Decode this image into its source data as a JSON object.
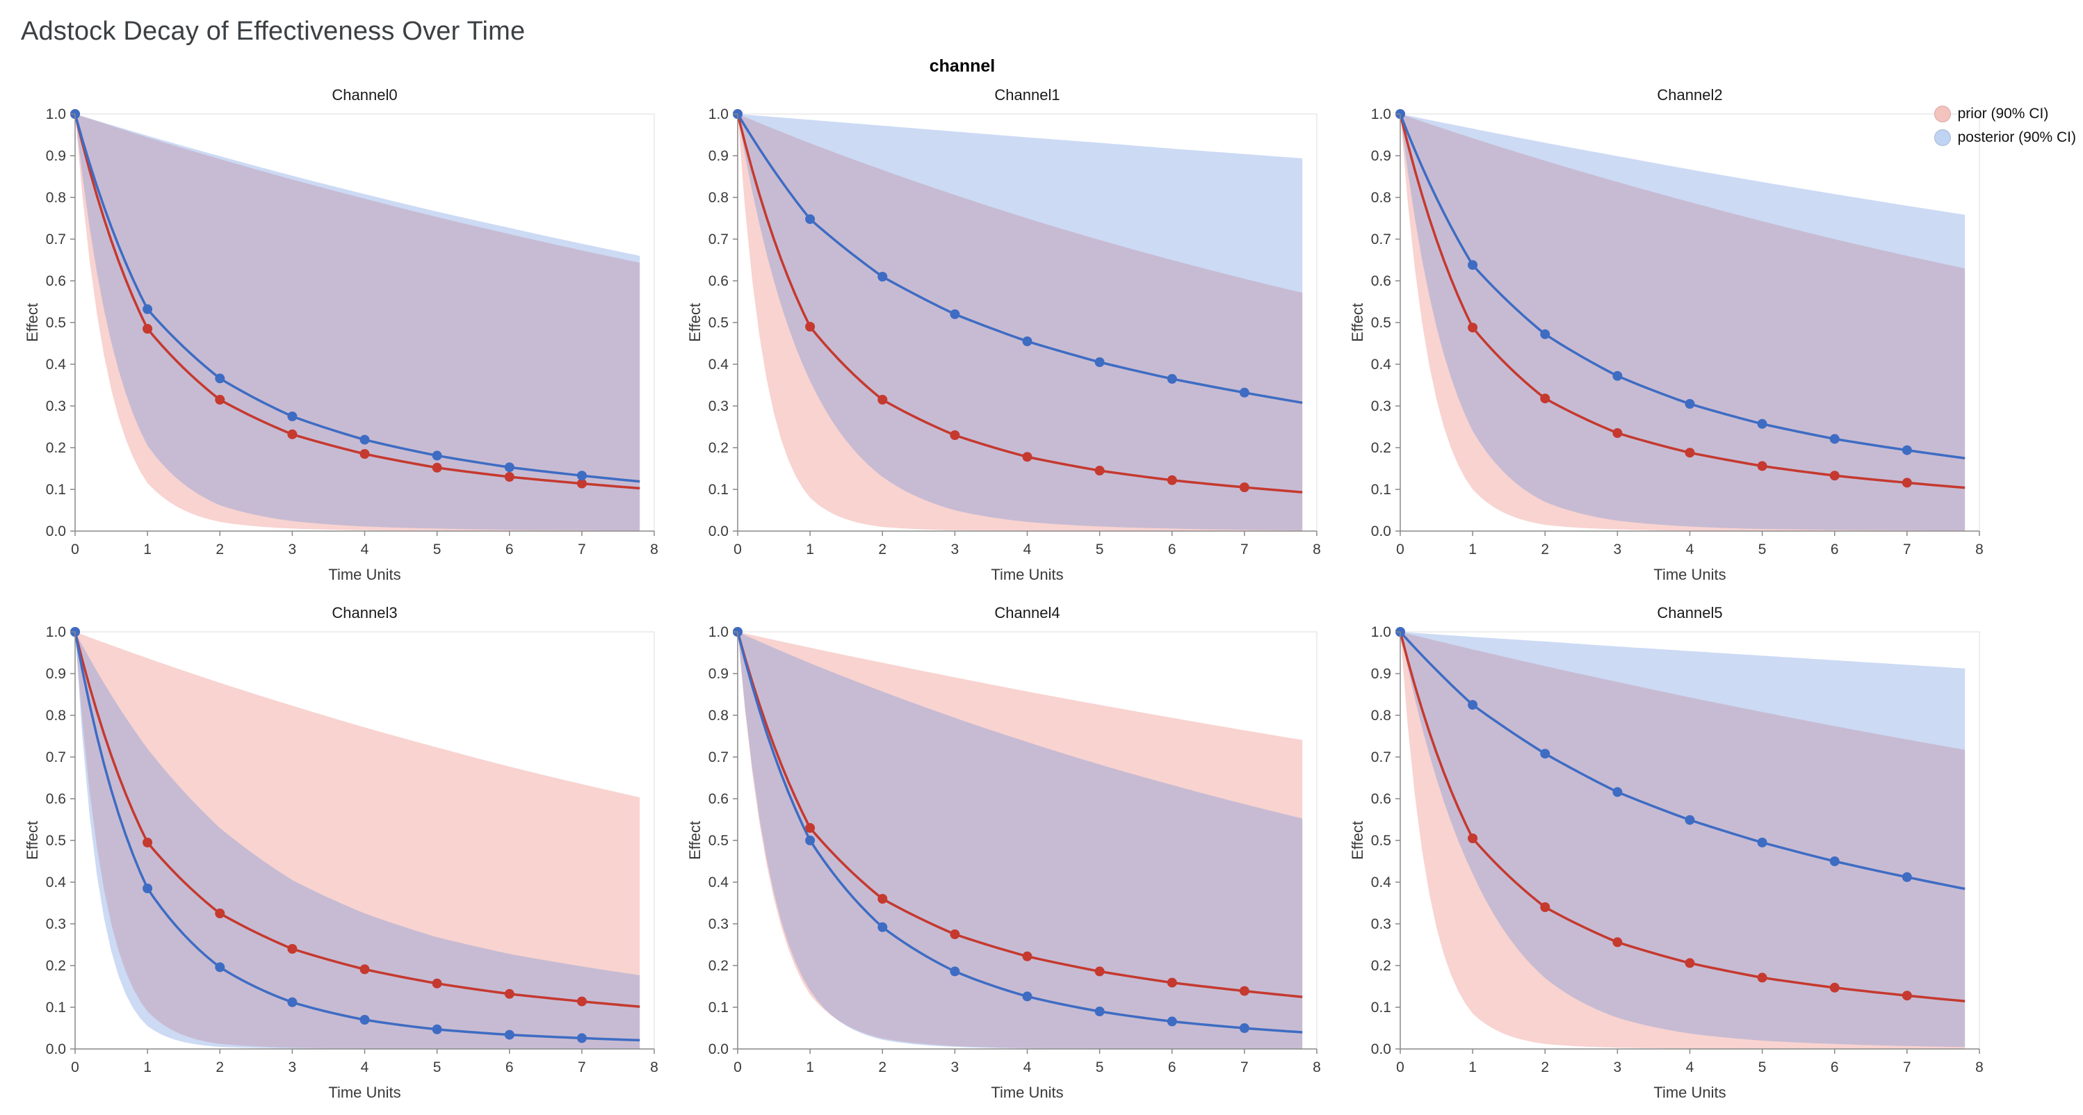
{
  "page": {
    "title": "Adstock Decay of Effectiveness Over Time",
    "facet_label": "channel"
  },
  "legend": {
    "items": [
      {
        "label": "prior (90% CI)",
        "swatch": "#f4c3bd"
      },
      {
        "label": "posterior (90% CI)",
        "swatch": "#bfd3f2"
      }
    ]
  },
  "colors": {
    "prior_line": "#c5392f",
    "posterior_line": "#3e6cc3",
    "prior_band": "rgba(233,119,109,0.32)",
    "posterior_band": "rgba(86,133,220,0.30)",
    "axis_line": "#888888",
    "view_border": "#dddddd",
    "tick_text": "#3a3a3a"
  },
  "axes": {
    "xlabel": "Time Units",
    "ylabel": "Effect",
    "xlim": [
      0,
      8
    ],
    "ylim": [
      0,
      1
    ],
    "xticks": [
      0,
      1,
      2,
      3,
      4,
      5,
      6,
      7,
      8
    ],
    "yticks": [
      0.0,
      0.1,
      0.2,
      0.3,
      0.4,
      0.5,
      0.6,
      0.7,
      0.8,
      0.9,
      1.0
    ],
    "grid": false
  },
  "chart_data": {
    "type": "line",
    "title": "Adstock Decay of Effectiveness Over Time",
    "x": [
      0,
      1,
      2,
      3,
      4,
      5,
      6,
      7
    ],
    "x_max_drawn": 7.8,
    "series_names": [
      "prior mean",
      "posterior mean",
      "prior 90% CI",
      "posterior 90% CI"
    ],
    "facets": [
      {
        "title": "Channel0",
        "prior": {
          "mean": [
            1.0,
            0.485,
            0.315,
            0.232,
            0.185,
            0.152,
            0.13,
            0.114
          ],
          "upper": [
            1.0,
            0.944,
            0.892,
            0.843,
            0.797,
            0.753,
            0.712,
            0.673
          ],
          "lower": [
            1.0,
            0.115,
            0.022,
            0.006,
            0.002,
            0.001,
            0.0005,
            0.0002
          ]
        },
        "posterior": {
          "mean": [
            1.0,
            0.532,
            0.366,
            0.275,
            0.219,
            0.181,
            0.153,
            0.133
          ],
          "upper": [
            1.0,
            0.948,
            0.899,
            0.852,
            0.808,
            0.766,
            0.727,
            0.689
          ],
          "lower": [
            1.0,
            0.205,
            0.062,
            0.024,
            0.011,
            0.006,
            0.003,
            0.002
          ]
        }
      },
      {
        "title": "Channel1",
        "prior": {
          "mean": [
            1.0,
            0.49,
            0.315,
            0.23,
            0.178,
            0.145,
            0.122,
            0.105
          ],
          "upper": [
            1.0,
            0.93,
            0.866,
            0.806,
            0.75,
            0.698,
            0.65,
            0.605
          ],
          "lower": [
            1.0,
            0.08,
            0.01,
            0.002,
            0.001,
            0.0005,
            0.0002,
            0.0001
          ]
        },
        "posterior": {
          "mean": [
            1.0,
            0.748,
            0.61,
            0.52,
            0.455,
            0.405,
            0.365,
            0.332
          ],
          "upper": [
            1.0,
            0.986,
            0.972,
            0.958,
            0.944,
            0.931,
            0.917,
            0.904
          ],
          "lower": [
            1.0,
            0.36,
            0.13,
            0.05,
            0.022,
            0.011,
            0.006,
            0.003
          ]
        }
      },
      {
        "title": "Channel2",
        "prior": {
          "mean": [
            1.0,
            0.488,
            0.318,
            0.235,
            0.188,
            0.156,
            0.133,
            0.116
          ],
          "upper": [
            1.0,
            0.942,
            0.888,
            0.837,
            0.789,
            0.743,
            0.7,
            0.66
          ],
          "lower": [
            1.0,
            0.1,
            0.015,
            0.004,
            0.001,
            0.0005,
            0.0002,
            0.0001
          ]
        },
        "posterior": {
          "mean": [
            1.0,
            0.638,
            0.472,
            0.372,
            0.305,
            0.257,
            0.221,
            0.194
          ],
          "upper": [
            1.0,
            0.965,
            0.931,
            0.899,
            0.867,
            0.837,
            0.808,
            0.78
          ],
          "lower": [
            1.0,
            0.24,
            0.07,
            0.025,
            0.011,
            0.005,
            0.003,
            0.002
          ]
        }
      },
      {
        "title": "Channel3",
        "prior": {
          "mean": [
            1.0,
            0.495,
            0.325,
            0.24,
            0.191,
            0.157,
            0.132,
            0.114
          ],
          "upper": [
            1.0,
            0.937,
            0.878,
            0.823,
            0.771,
            0.723,
            0.677,
            0.635
          ],
          "lower": [
            1.0,
            0.09,
            0.012,
            0.003,
            0.001,
            0.0005,
            0.0002,
            0.0001
          ]
        },
        "posterior": {
          "mean": [
            1.0,
            0.385,
            0.196,
            0.112,
            0.07,
            0.047,
            0.034,
            0.026
          ],
          "upper": [
            1.0,
            0.72,
            0.53,
            0.405,
            0.325,
            0.268,
            0.228,
            0.198
          ],
          "lower": [
            1.0,
            0.055,
            0.005,
            0.001,
            0.0005,
            0.0002,
            0.0001,
            0.0001
          ]
        }
      },
      {
        "title": "Channel4",
        "prior": {
          "mean": [
            1.0,
            0.53,
            0.36,
            0.275,
            0.222,
            0.186,
            0.159,
            0.139
          ],
          "upper": [
            1.0,
            0.962,
            0.926,
            0.891,
            0.857,
            0.825,
            0.794,
            0.764
          ],
          "lower": [
            1.0,
            0.13,
            0.025,
            0.007,
            0.002,
            0.001,
            0.0005,
            0.0002
          ]
        },
        "posterior": {
          "mean": [
            1.0,
            0.5,
            0.292,
            0.186,
            0.126,
            0.09,
            0.066,
            0.05
          ],
          "upper": [
            1.0,
            0.925,
            0.857,
            0.794,
            0.736,
            0.682,
            0.633,
            0.587
          ],
          "lower": [
            1.0,
            0.14,
            0.022,
            0.005,
            0.001,
            0.0005,
            0.0002,
            0.0001
          ]
        }
      },
      {
        "title": "Channel5",
        "prior": {
          "mean": [
            1.0,
            0.505,
            0.34,
            0.256,
            0.206,
            0.171,
            0.147,
            0.128
          ],
          "upper": [
            1.0,
            0.958,
            0.918,
            0.88,
            0.843,
            0.808,
            0.774,
            0.742
          ],
          "lower": [
            1.0,
            0.085,
            0.012,
            0.003,
            0.001,
            0.0005,
            0.0002,
            0.0001
          ]
        },
        "posterior": {
          "mean": [
            1.0,
            0.825,
            0.708,
            0.616,
            0.549,
            0.495,
            0.45,
            0.412
          ],
          "upper": [
            1.0,
            0.988,
            0.977,
            0.965,
            0.954,
            0.943,
            0.932,
            0.921
          ],
          "lower": [
            1.0,
            0.42,
            0.17,
            0.075,
            0.037,
            0.02,
            0.012,
            0.007
          ]
        }
      }
    ]
  }
}
